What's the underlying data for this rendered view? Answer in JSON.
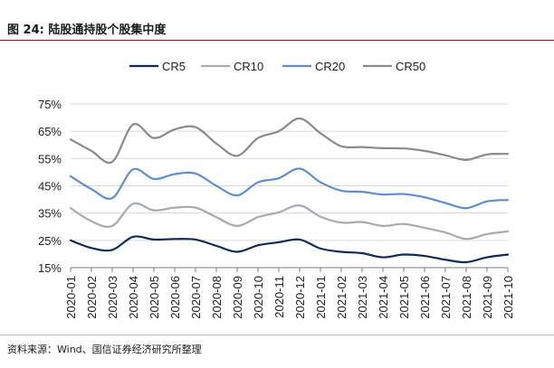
{
  "header": {
    "title": "图 24:  陆股通持股个股集中度"
  },
  "footer": {
    "source": "资料来源：Wind、国信证券经济研究所整理"
  },
  "chart_data": {
    "type": "line",
    "title": "图 24:  陆股通持股个股集中度",
    "xlabel": "",
    "ylabel": "",
    "ylim": [
      15,
      75
    ],
    "y_ticks": [
      "15%",
      "25%",
      "35%",
      "45%",
      "55%",
      "65%",
      "75%"
    ],
    "y_tick_values": [
      15,
      25,
      35,
      45,
      55,
      65,
      75
    ],
    "grid": "horizontal",
    "legend_position": "top",
    "x": [
      "2020-01",
      "2020-02",
      "2020-03",
      "2020-04",
      "2020-05",
      "2020-06",
      "2020-07",
      "2020-08",
      "2020-09",
      "2020-10",
      "2020-11",
      "2020-12",
      "2021-01",
      "2021-02",
      "2021-03",
      "2021-04",
      "2021-05",
      "2021-06",
      "2021-07",
      "2021-08",
      "2021-09",
      "2021-10"
    ],
    "series": [
      {
        "name": "CR5",
        "color": "#0f2a5c",
        "values": [
          25.0,
          22.2,
          21.5,
          26.3,
          25.3,
          25.5,
          25.3,
          23.0,
          20.8,
          23.2,
          24.3,
          25.3,
          22.0,
          20.8,
          20.3,
          18.8,
          19.8,
          19.3,
          17.9,
          17.0,
          18.8,
          19.8
        ]
      },
      {
        "name": "CR10",
        "color": "#a3abb3",
        "values": [
          36.8,
          32.0,
          30.3,
          38.4,
          36.0,
          37.0,
          37.0,
          33.5,
          30.3,
          33.5,
          35.3,
          37.8,
          33.7,
          31.5,
          31.7,
          30.3,
          31.0,
          29.6,
          27.9,
          25.5,
          27.3,
          28.3
        ]
      },
      {
        "name": "CR20",
        "color": "#5b8fd2",
        "values": [
          48.5,
          43.8,
          40.5,
          51.0,
          47.5,
          49.3,
          49.5,
          45.0,
          41.5,
          46.3,
          47.8,
          51.3,
          46.3,
          43.2,
          42.8,
          41.8,
          42.0,
          40.8,
          38.7,
          36.8,
          39.3,
          39.8
        ]
      },
      {
        "name": "CR50",
        "color": "#8a8a8a",
        "values": [
          62.0,
          57.8,
          53.8,
          67.5,
          62.5,
          65.7,
          66.5,
          60.5,
          56.0,
          62.5,
          65.0,
          69.7,
          64.3,
          59.5,
          59.2,
          58.8,
          58.7,
          57.8,
          56.2,
          54.5,
          56.5,
          56.7
        ]
      }
    ]
  }
}
